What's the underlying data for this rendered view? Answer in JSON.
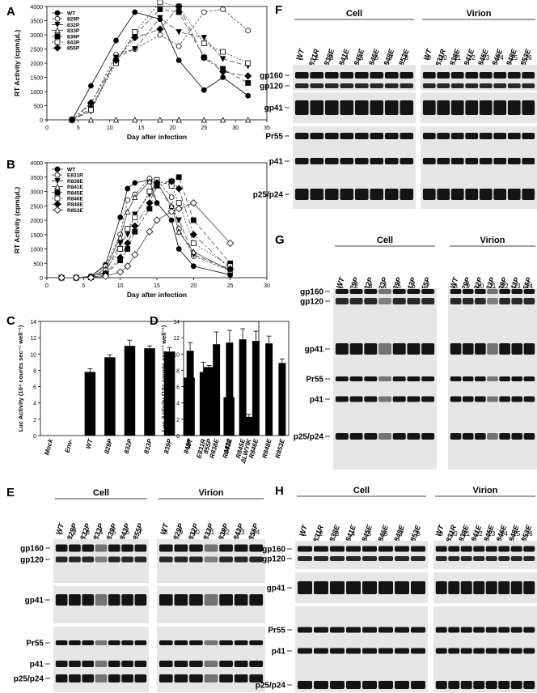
{
  "panels": {
    "a": "A",
    "b": "B",
    "c": "C",
    "d": "D",
    "e": "E",
    "f": "F",
    "g": "G",
    "h": "H"
  },
  "chart_data": [
    {
      "id": "A",
      "type": "line",
      "xlabel": "Day after infection",
      "ylabel": "RT Activity (cpm/μL)",
      "xlim": [
        0,
        35
      ],
      "ylim": [
        0,
        4000
      ],
      "xticks": [
        0,
        5,
        10,
        15,
        20,
        25,
        30,
        35
      ],
      "yticks": [
        0,
        500,
        1000,
        1500,
        2000,
        2500,
        3000,
        3500,
        4000
      ],
      "legend": "top-left",
      "series": [
        {
          "name": "WT",
          "marker": "circle-filled",
          "x": [
            4,
            7,
            11,
            14,
            18,
            21,
            25,
            28,
            32
          ],
          "y": [
            0,
            1200,
            2800,
            3800,
            3550,
            2100,
            1050,
            1500,
            850
          ]
        },
        {
          "name": "829P",
          "marker": "circle-open",
          "x": [
            4,
            7,
            11,
            14,
            18,
            21,
            25,
            28,
            32
          ],
          "y": [
            0,
            550,
            2300,
            2500,
            3000,
            2600,
            3800,
            3900,
            3150
          ]
        },
        {
          "name": "832P",
          "marker": "triangle-down-filled",
          "x": [
            4,
            7,
            11,
            14,
            18,
            21,
            25,
            28,
            32
          ],
          "y": [
            0,
            300,
            2200,
            2500,
            3600,
            3100,
            2900,
            2150,
            1900
          ]
        },
        {
          "name": "833P",
          "marker": "triangle-open",
          "x": [
            4,
            7,
            11,
            14,
            18,
            21,
            25,
            28,
            32
          ],
          "y": [
            0,
            0,
            0,
            0,
            0,
            0,
            0,
            0,
            0
          ]
        },
        {
          "name": "839P",
          "marker": "square-filled",
          "x": [
            4,
            7,
            11,
            14,
            18,
            21,
            25,
            28,
            32
          ],
          "y": [
            0,
            400,
            2100,
            3000,
            3900,
            3800,
            2200,
            1800,
            1300
          ]
        },
        {
          "name": "843P",
          "marker": "square-open",
          "x": [
            4,
            7,
            11,
            14,
            18,
            21,
            25,
            28,
            32
          ],
          "y": [
            0,
            350,
            2000,
            3100,
            4150,
            4000,
            2700,
            2400,
            2000
          ]
        },
        {
          "name": "855P",
          "marker": "diamond-filled",
          "x": [
            4,
            7,
            11,
            14,
            18,
            21,
            25,
            28,
            32
          ],
          "y": [
            0,
            600,
            2100,
            2900,
            3200,
            4000,
            2200,
            1700,
            1550
          ]
        }
      ]
    },
    {
      "id": "B",
      "type": "line",
      "xlabel": "Day after infection",
      "ylabel": "RT Activity (cpm/μL)",
      "xlim": [
        0,
        30
      ],
      "ylim": [
        0,
        4000
      ],
      "xticks": [
        0,
        5,
        10,
        15,
        20,
        25,
        30
      ],
      "yticks": [
        0,
        500,
        1000,
        1500,
        2000,
        2500,
        3000,
        3500,
        4000
      ],
      "legend": "top-left",
      "series": [
        {
          "name": "WT",
          "marker": "circle-filled",
          "x": [
            2,
            4,
            6,
            8,
            10,
            11,
            12,
            14,
            15,
            17,
            18,
            20,
            25
          ],
          "y": [
            0,
            0,
            50,
            450,
            2100,
            3100,
            3300,
            3400,
            2600,
            2000,
            1000,
            400,
            100
          ]
        },
        {
          "name": "E831R",
          "marker": "circle-open",
          "x": [
            2,
            4,
            6,
            8,
            10,
            11,
            12,
            14,
            15,
            17,
            18,
            20,
            25
          ],
          "y": [
            0,
            0,
            50,
            400,
            1500,
            2700,
            2900,
            3450,
            3400,
            2800,
            1700,
            750,
            250
          ]
        },
        {
          "name": "R838E",
          "marker": "triangle-down-filled",
          "x": [
            2,
            4,
            6,
            8,
            10,
            11,
            12,
            14,
            15,
            17,
            18,
            20,
            25
          ],
          "y": [
            0,
            0,
            20,
            200,
            1200,
            1500,
            2200,
            2900,
            3350,
            2400,
            2000,
            800,
            300
          ]
        },
        {
          "name": "R841E",
          "marker": "triangle-open",
          "x": [
            2,
            4,
            6,
            8,
            10,
            11,
            12,
            14,
            15,
            17,
            18,
            20,
            25
          ],
          "y": [
            0,
            0,
            30,
            300,
            1400,
            2300,
            2800,
            3350,
            3300,
            2500,
            1600,
            900,
            250
          ]
        },
        {
          "name": "R845E",
          "marker": "square-filled",
          "x": [
            2,
            4,
            6,
            8,
            10,
            11,
            12,
            14,
            15,
            17,
            18,
            20,
            25
          ],
          "y": [
            0,
            0,
            10,
            100,
            600,
            1000,
            1600,
            2400,
            3200,
            3350,
            3500,
            2000,
            500
          ]
        },
        {
          "name": "R846E",
          "marker": "square-open",
          "x": [
            2,
            4,
            6,
            8,
            10,
            11,
            12,
            14,
            15,
            17,
            18,
            20,
            25
          ],
          "y": [
            0,
            0,
            20,
            250,
            1000,
            1700,
            2100,
            3000,
            3400,
            3200,
            2600,
            1200,
            400
          ]
        },
        {
          "name": "R848E",
          "marker": "diamond-filled",
          "x": [
            2,
            4,
            6,
            8,
            10,
            11,
            12,
            14,
            15,
            17,
            18,
            20,
            25
          ],
          "y": [
            0,
            0,
            20,
            150,
            700,
            1200,
            1800,
            2600,
            3300,
            3350,
            3100,
            1500,
            300
          ]
        },
        {
          "name": "R853E",
          "marker": "diamond-open",
          "x": [
            2,
            4,
            6,
            8,
            10,
            11,
            12,
            14,
            15,
            17,
            18,
            20,
            25
          ],
          "y": [
            0,
            0,
            0,
            50,
            200,
            400,
            800,
            1600,
            2000,
            2300,
            2400,
            2600,
            1200
          ]
        }
      ]
    },
    {
      "id": "C",
      "type": "bar",
      "ylabel": "Luc Activity (10⁴ counts sec⁻¹ well⁻¹)",
      "ylim": [
        0,
        14
      ],
      "yticks": [
        0,
        2,
        4,
        6,
        8,
        10,
        12,
        14
      ],
      "categories": [
        "Mock",
        "Env-",
        "WT",
        "829P",
        "832P",
        "833P",
        "839P",
        "843P",
        "855P",
        "Δ833",
        "ΔLWYIK"
      ],
      "values": [
        0,
        0,
        7.8,
        9.6,
        11.0,
        10.7,
        10.3,
        7.1,
        8.4,
        4.7,
        2.3
      ],
      "errors": [
        0,
        0,
        0.4,
        0.3,
        0.7,
        0.3,
        0.5,
        0.6,
        0.2,
        0.4,
        0.3
      ]
    },
    {
      "id": "D",
      "type": "bar",
      "ylabel": "Luc Activity (10⁴ counts sec⁻¹ well⁻¹)",
      "ylim": [
        0,
        14
      ],
      "yticks": [
        0,
        2,
        4,
        6,
        8,
        10,
        12,
        14
      ],
      "categories": [
        "WT",
        "E831R",
        "R838E",
        "R841E",
        "R845E",
        "R846E",
        "R848E",
        "R853E"
      ],
      "values": [
        10.4,
        7.8,
        11.2,
        11.4,
        11.8,
        11.6,
        11.3,
        8.9
      ],
      "errors": [
        1.0,
        1.2,
        1.5,
        1.5,
        1.3,
        1.2,
        0.9,
        0.5
      ]
    }
  ],
  "blots": [
    {
      "id": "E",
      "groups": [
        {
          "title": "Cell",
          "lanes": [
            "WT",
            "829P",
            "832P",
            "833P",
            "839P",
            "843P",
            "855P"
          ],
          "numbers": [
            "1",
            "2",
            "3",
            "4",
            "5",
            "6",
            "7"
          ]
        },
        {
          "title": "Virion",
          "lanes": [
            "WT",
            "829P",
            "832P",
            "833P",
            "839P",
            "843P",
            "855P"
          ],
          "numbers": [
            "8",
            "9",
            "10",
            "11",
            "12",
            "13",
            "14"
          ]
        }
      ],
      "bands": [
        "gp160",
        "gp120",
        "gp41",
        "Pr55",
        "p41",
        "p25/p24"
      ]
    },
    {
      "id": "F",
      "groups": [
        {
          "title": "Cell",
          "lanes": [
            "WT",
            "E831R",
            "R838E",
            "R841E",
            "R845E",
            "R846E",
            "R848E",
            "R853E"
          ],
          "numbers": [
            "1",
            "2",
            "3",
            "4",
            "5",
            "6",
            "7",
            "8"
          ]
        },
        {
          "title": "Virion",
          "lanes": [
            "WT",
            "E831R",
            "R838E",
            "R841E",
            "R845E",
            "R846E",
            "R848E",
            "R853E"
          ],
          "numbers": [
            "9",
            "10",
            "11",
            "12",
            "13",
            "14",
            "15",
            "16"
          ]
        }
      ],
      "bands": [
        "gp160",
        "gp120",
        "gp41",
        "Pr55",
        "p41",
        "p25/p24"
      ]
    },
    {
      "id": "G",
      "groups": [
        {
          "title": "Cell",
          "lanes": [
            "WT",
            "829P",
            "832P",
            "833P",
            "839P",
            "843P",
            "855P"
          ],
          "numbers": [
            "1",
            "2",
            "3",
            "4",
            "5",
            "6",
            "7"
          ]
        },
        {
          "title": "Virion",
          "lanes": [
            "WT",
            "829P",
            "832P",
            "833P",
            "839P",
            "843P",
            "855P"
          ],
          "numbers": [
            "8",
            "9",
            "10",
            "11",
            "12",
            "13",
            "14"
          ]
        }
      ],
      "bands": [
        "gp160",
        "gp120",
        "gp41",
        "Pr55",
        "p41",
        "p25/p24"
      ]
    },
    {
      "id": "H",
      "groups": [
        {
          "title": "Cell",
          "lanes": [
            "WT",
            "E831R",
            "R838E",
            "R841E",
            "R845E",
            "R846E",
            "R848E",
            "R853E"
          ],
          "numbers": [
            "1",
            "2",
            "3",
            "4",
            "5",
            "6",
            "7",
            "8"
          ]
        },
        {
          "title": "Virion",
          "lanes": [
            "WT",
            "E831R",
            "R838E",
            "R841E",
            "R845E",
            "R846E",
            "R848E",
            "R853E"
          ],
          "numbers": [
            "9",
            "10",
            "11",
            "12",
            "13",
            "14",
            "15",
            "16"
          ]
        }
      ],
      "bands": [
        "gp160",
        "gp120",
        "gp41",
        "Pr55",
        "p41",
        "p25/p24"
      ]
    }
  ]
}
